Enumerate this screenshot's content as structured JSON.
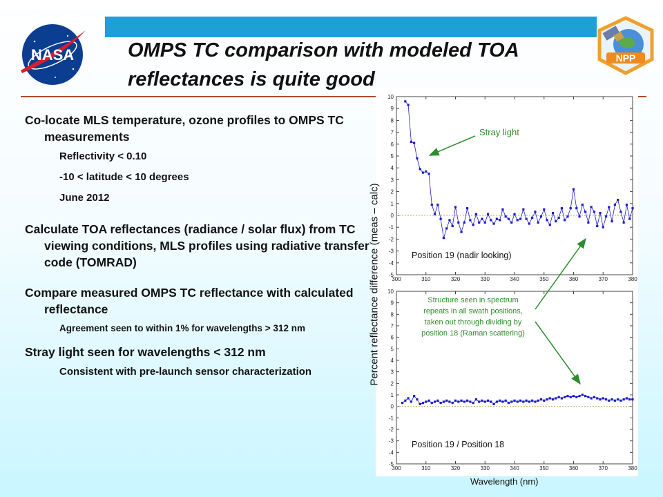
{
  "slide": {
    "title": "OMPS TC comparison with modeled TOA reflectances is quite good",
    "nasa_logo_text": "NASA",
    "npp_logo_text": "NPP"
  },
  "bullets": [
    {
      "text": "Co-locate MLS temperature, ozone profiles to OMPS TC measurements",
      "subs": [
        "Reflectivity < 0.10",
        "-10 < latitude < 10 degrees",
        "June 2012"
      ]
    },
    {
      "text": "Calculate TOA reflectances (radiance / solar flux) from TC viewing conditions, MLS profiles using radiative transfer code (TOMRAD)",
      "subs": []
    },
    {
      "text": "Compare measured OMPS TC reflectance with calculated reflectance",
      "subs": [
        "Agreement seen to within 1% for wavelengths > 312 nm"
      ]
    },
    {
      "text": "Stray light seen for wavelengths < 312 nm",
      "subs": [
        "Consistent with pre-launch sensor characterization"
      ]
    }
  ],
  "colors": {
    "accent_bar": "#1e9fd6",
    "divider": "#b24a2a",
    "series": "#1a1acc",
    "annotation": "#2e8b2e"
  },
  "chart_data": [
    {
      "type": "line",
      "xlabel": "Wavelength (nm)",
      "ylabel": "Percent reflectance difference (meas – calc)",
      "xlim": [
        300,
        380
      ],
      "ylim": [
        -5,
        10
      ],
      "x_ticks": [
        300,
        310,
        320,
        330,
        340,
        350,
        360,
        370,
        380
      ],
      "y_ticks": [
        -5,
        -4,
        -3,
        -2,
        -1,
        0,
        1,
        2,
        3,
        4,
        5,
        6,
        7,
        8,
        9,
        10
      ],
      "annotation_position": "Position 19 (nadir looking)",
      "annotation_stray": "Stray light",
      "x": [
        303,
        304,
        305,
        306,
        307,
        308,
        309,
        310,
        311,
        312,
        313,
        314,
        315,
        316,
        317,
        318,
        319,
        320,
        321,
        322,
        323,
        324,
        325,
        326,
        327,
        328,
        329,
        330,
        331,
        332,
        333,
        334,
        335,
        336,
        337,
        338,
        339,
        340,
        341,
        342,
        343,
        344,
        345,
        346,
        347,
        348,
        349,
        350,
        351,
        352,
        353,
        354,
        355,
        356,
        357,
        358,
        359,
        360,
        361,
        362,
        363,
        364,
        365,
        366,
        367,
        368,
        369,
        370,
        371,
        372,
        373,
        374,
        375,
        376,
        377,
        378,
        379,
        380
      ],
      "y": [
        9.6,
        9.3,
        6.2,
        6.1,
        4.8,
        3.9,
        3.6,
        3.7,
        3.5,
        0.9,
        0.1,
        0.9,
        -0.3,
        -1.9,
        -1.1,
        -0.4,
        -0.9,
        0.7,
        -0.6,
        -1.4,
        -0.6,
        0.6,
        -0.4,
        -0.8,
        0.1,
        -0.6,
        -0.3,
        -0.6,
        0.1,
        -0.4,
        -0.7,
        -0.3,
        -0.4,
        0.5,
        -0.1,
        -0.3,
        -0.6,
        0.1,
        -0.4,
        -0.3,
        0.5,
        -0.3,
        -0.7,
        -0.2,
        0.3,
        -0.6,
        -0.1,
        0.5,
        -0.4,
        -0.8,
        0.2,
        -0.5,
        -0.2,
        0.6,
        -0.4,
        -0.1,
        0.6,
        2.2,
        0.6,
        -0.1,
        0.9,
        0.3,
        -0.6,
        0.7,
        0.3,
        -0.9,
        0.2,
        -1.0,
        -0.1,
        0.7,
        -0.5,
        0.9,
        1.3,
        0.3,
        -0.6,
        0.9,
        -0.3,
        0.6
      ]
    },
    {
      "type": "line",
      "xlabel": "Wavelength (nm)",
      "ylabel": "Percent reflectance difference (meas – calc)",
      "xlim": [
        300,
        380
      ],
      "ylim": [
        -5,
        10
      ],
      "x_ticks": [
        300,
        310,
        320,
        330,
        340,
        350,
        360,
        370,
        380
      ],
      "y_ticks": [
        -5,
        -4,
        -3,
        -2,
        -1,
        0,
        1,
        2,
        3,
        4,
        5,
        6,
        7,
        8,
        9,
        10
      ],
      "annotation_position": "Position 19 / Position 18",
      "annotation_structure": "Structure seen in spectrum repeats in all swath positions, taken out through dividing by position 18 (Raman scattering)",
      "x": [
        302,
        303,
        304,
        305,
        306,
        307,
        308,
        309,
        310,
        311,
        312,
        313,
        314,
        315,
        316,
        317,
        318,
        319,
        320,
        321,
        322,
        323,
        324,
        325,
        326,
        327,
        328,
        329,
        330,
        331,
        332,
        333,
        334,
        335,
        336,
        337,
        338,
        339,
        340,
        341,
        342,
        343,
        344,
        345,
        346,
        347,
        348,
        349,
        350,
        351,
        352,
        353,
        354,
        355,
        356,
        357,
        358,
        359,
        360,
        361,
        362,
        363,
        364,
        365,
        366,
        367,
        368,
        369,
        370,
        371,
        372,
        373,
        374,
        375,
        376,
        377,
        378,
        379,
        380
      ],
      "y": [
        0.3,
        0.5,
        0.7,
        0.4,
        0.9,
        0.6,
        0.2,
        0.3,
        0.4,
        0.5,
        0.3,
        0.4,
        0.5,
        0.3,
        0.4,
        0.5,
        0.4,
        0.3,
        0.5,
        0.4,
        0.5,
        0.4,
        0.5,
        0.4,
        0.3,
        0.6,
        0.4,
        0.5,
        0.4,
        0.5,
        0.4,
        0.2,
        0.4,
        0.5,
        0.4,
        0.5,
        0.3,
        0.4,
        0.5,
        0.4,
        0.5,
        0.4,
        0.5,
        0.4,
        0.5,
        0.4,
        0.5,
        0.6,
        0.5,
        0.6,
        0.7,
        0.6,
        0.7,
        0.8,
        0.7,
        0.8,
        0.9,
        0.8,
        0.9,
        0.8,
        0.9,
        1.0,
        0.9,
        0.8,
        0.7,
        0.8,
        0.7,
        0.6,
        0.7,
        0.6,
        0.5,
        0.6,
        0.5,
        0.6,
        0.5,
        0.6,
        0.7,
        0.6,
        0.6
      ]
    }
  ]
}
